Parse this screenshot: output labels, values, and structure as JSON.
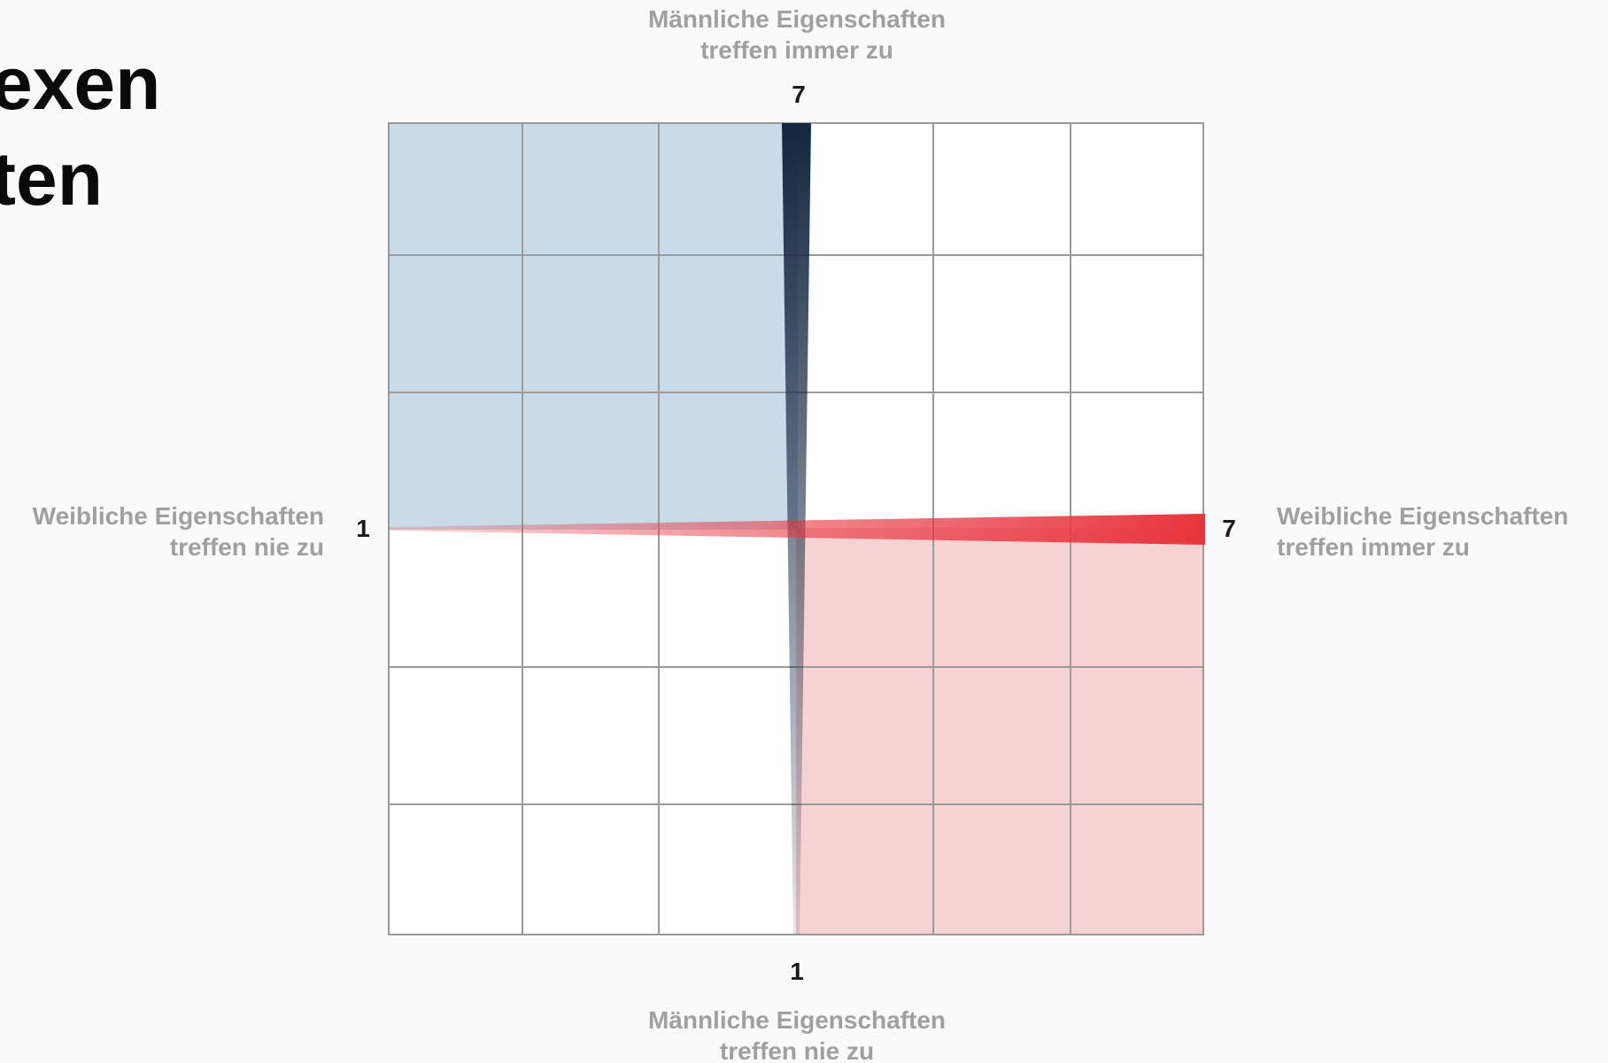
{
  "heading": {
    "line1": "exen",
    "line2": "ten"
  },
  "axes": {
    "vertical": {
      "top_caption_line1": "Männliche Eigenschaften",
      "top_caption_line2": "treffen immer zu",
      "bottom_caption_line1": "Männliche Eigenschaften",
      "bottom_caption_line2": "treffen nie zu",
      "max_label": "7",
      "min_label": "1",
      "color": "#13263f"
    },
    "horizontal": {
      "left_caption_line1": "Weibliche Eigenschaften",
      "left_caption_line2": "treffen nie zu",
      "right_caption_line1": "Weibliche Eigenschaften",
      "right_caption_line2": "treffen immer zu",
      "min_label": "1",
      "max_label": "7",
      "color": "#e8343d"
    }
  },
  "grid": {
    "columns": 6,
    "rows": 6,
    "cell_fill": "#ffffff",
    "line_color": "#9a9a9a"
  },
  "quadrants": {
    "top_left_fill": "#c9dbe9",
    "bottom_right_fill": "#f6d2d3"
  }
}
